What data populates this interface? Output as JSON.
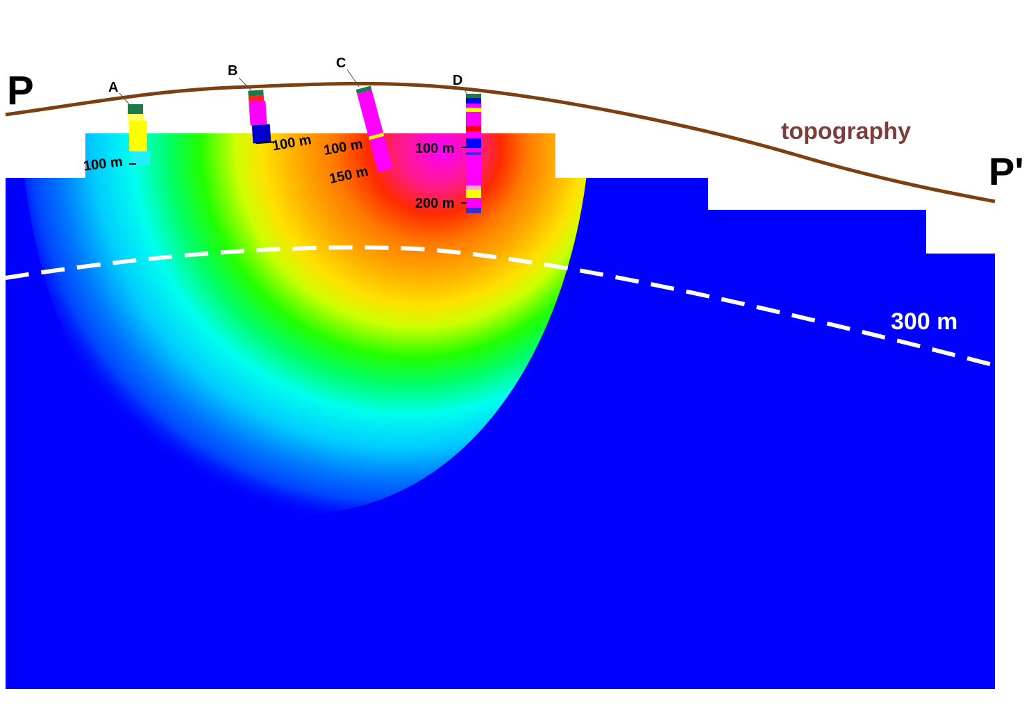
{
  "section": {
    "start_label": "P",
    "end_label": "P'",
    "topography_label": "topography",
    "depth_line_label": "300 m"
  },
  "colors": {
    "background_body": "#0000ff",
    "topography": "#7b3f10",
    "topography_text": "#7a3f3a",
    "depth_line": "#ffffff",
    "ramp": [
      "#0055ff",
      "#00ffff",
      "#00ff00",
      "#ffff00",
      "#ffa500",
      "#ff0000",
      "#ff00ff"
    ]
  },
  "boreholes": [
    {
      "id": "A",
      "label": "A",
      "depth_labels": [
        "100 m"
      ]
    },
    {
      "id": "B",
      "label": "B",
      "depth_labels": [
        "100 m"
      ]
    },
    {
      "id": "C",
      "label": "C",
      "depth_labels": [
        "100 m",
        "150 m"
      ]
    },
    {
      "id": "D",
      "label": "D",
      "depth_labels": [
        "100 m",
        "200 m"
      ]
    }
  ]
}
